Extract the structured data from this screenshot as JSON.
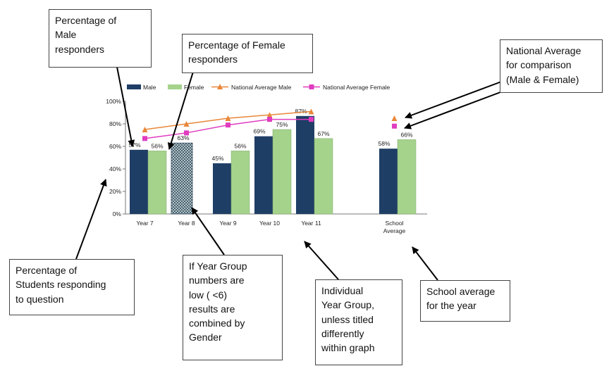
{
  "chart_data": {
    "type": "bar",
    "categories": [
      "Year 7",
      "Year 8",
      "Year 9",
      "Year 10",
      "Year 11",
      "School Average"
    ],
    "series": [
      {
        "name": "Male",
        "color": "#1f3e66",
        "values": [
          57,
          null,
          45,
          69,
          87,
          58
        ]
      },
      {
        "name": "Female",
        "color": "#a5d38c",
        "values": [
          56,
          null,
          56,
          75,
          67,
          66
        ]
      },
      {
        "name": "National Average Male",
        "color": "#e8873a",
        "marker": "triangle",
        "values": [
          75,
          80,
          85,
          88,
          91,
          85
        ]
      },
      {
        "name": "National Average Female",
        "color": "#e03cc0",
        "marker": "square",
        "values": [
          67,
          72,
          79,
          84,
          84,
          78
        ]
      }
    ],
    "combined": {
      "category": "Year 8",
      "value": 63,
      "pattern": "hatched"
    },
    "data_labels": {
      "Male": [
        "57%",
        null,
        "45%",
        "69%",
        "87%",
        "58%"
      ],
      "Female": [
        "56%",
        null,
        "56%",
        "75%",
        "67%",
        "66%"
      ],
      "Combined": "63%"
    },
    "yticks": [
      "0%",
      "20%",
      "40%",
      "60%",
      "80%",
      "100%"
    ],
    "ylim": [
      0,
      100
    ],
    "legend_position": "top"
  },
  "callouts": {
    "male": "Percentage of\nMale\nresponders",
    "female": "Percentage of Female\nresponders",
    "national": "National Average\nfor comparison\n(Male & Female)",
    "students": "Percentage of\nStudents responding\nto question",
    "year_group": "If Year Group\nnumbers are\nlow ( <6)\nresults are\ncombined by\nGender",
    "individual": "Individual\nYear Group,\nunless titled\ndifferently\nwithin graph",
    "school": "School average\nfor the year"
  }
}
